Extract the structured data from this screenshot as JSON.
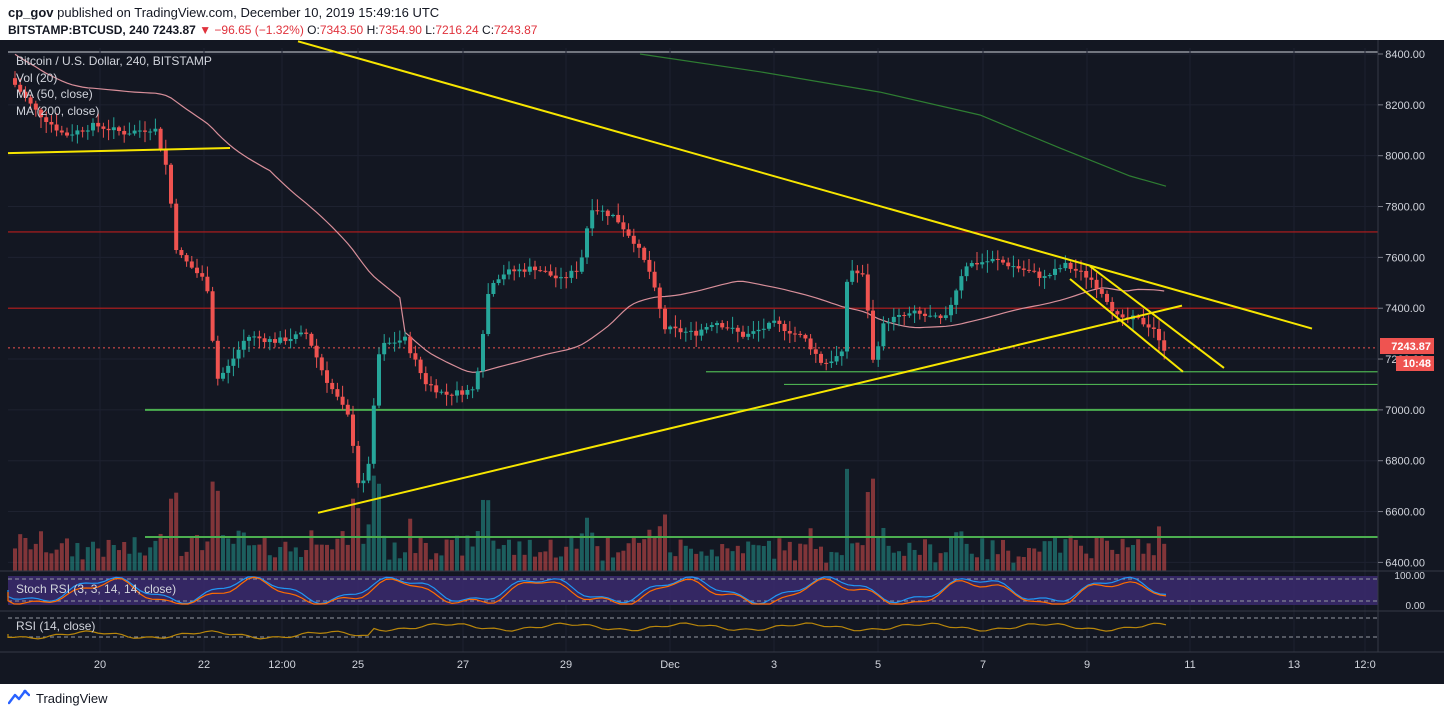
{
  "header": {
    "publisher": "cp_gov",
    "published_text": "published on TradingView.com, December 10, 2019 15:49:16 UTC",
    "symbol": "BITSTAMP:BTCUSD, 240",
    "last": "7243.87",
    "change": "▼ −96.65 (−1.32%)",
    "open_label": "O:",
    "open": "7343.50",
    "high_label": "H:",
    "high": "7354.90",
    "low_label": "L:",
    "low": "7216.24",
    "close_label": "C:",
    "close": "7243.87"
  },
  "legend": {
    "title": "Bitcoin / U.S. Dollar, 240, BITSTAMP",
    "vol": "Vol (20)",
    "ma50": "MA (50, close)",
    "ma200": "MA (200, close)"
  },
  "price_badge": {
    "price": "7243.87",
    "timer": "10:48"
  },
  "indicators": {
    "stoch_label": "Stoch RSI (3, 3, 14, 14, close)",
    "stoch_ticks": [
      "100.00",
      "0.00"
    ],
    "rsi_label": "RSI (14, close)"
  },
  "footer": {
    "brand": "TradingView"
  },
  "colors": {
    "background": "#131722",
    "up": "#26a69a",
    "down": "#ef5350",
    "trendline": "#f7e600",
    "support": "#4caf50",
    "resistance": "#b71c1c",
    "ma50": "#d88f9a",
    "ma200": "#2e7d32",
    "stoch_k": "#2196f3",
    "stoch_d": "#ff6d00",
    "rsi": "#b8860b",
    "indicator_band": "#3b2a6e"
  },
  "chart_data": {
    "type": "candlestick",
    "timeframe": "240",
    "y_axis": {
      "ticks": [
        "8400.00",
        "8200.00",
        "8000.00",
        "7800.00",
        "7600.00",
        "7400.00",
        "7200.00",
        "7000.00",
        "6800.00",
        "6600.00",
        "6400.00"
      ]
    },
    "x_axis": {
      "ticks": [
        "20",
        "22",
        "12:00",
        "25",
        "27",
        "29",
        "Dec",
        "3",
        "5",
        "7",
        "9",
        "11",
        "13",
        "12:0"
      ]
    },
    "horizontal_levels": {
      "resistance": [
        7700,
        7400
      ],
      "support": [
        7000,
        6500,
        7150,
        7100
      ]
    },
    "last_price": 7243.87
  }
}
